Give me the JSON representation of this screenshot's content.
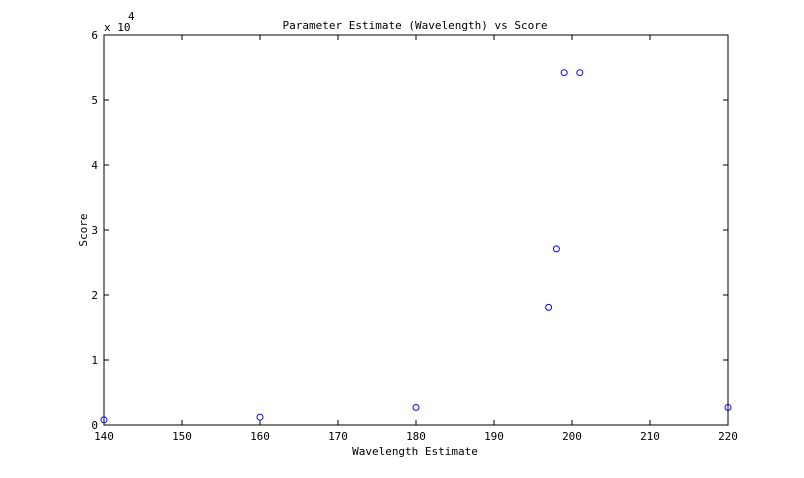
{
  "chart_data": {
    "type": "scatter",
    "title": "Parameter Estimate (Wavelength) vs Score",
    "xlabel": "Wavelength Estimate",
    "ylabel": "Score",
    "y_multiplier_label": "x 10",
    "y_multiplier_exponent": "4",
    "xlim": [
      140,
      220
    ],
    "ylim": [
      0,
      60000
    ],
    "x_ticks": [
      140,
      150,
      160,
      170,
      180,
      190,
      200,
      210,
      220
    ],
    "y_ticks": [
      0,
      10000,
      20000,
      30000,
      40000,
      50000,
      60000
    ],
    "x_tick_labels": [
      "140",
      "150",
      "160",
      "170",
      "180",
      "190",
      "200",
      "210",
      "220"
    ],
    "y_tick_labels": [
      "0",
      "1",
      "2",
      "3",
      "4",
      "5",
      "6"
    ],
    "grid": false,
    "marker": "circle-open",
    "marker_color": "#0000ff",
    "series": [
      {
        "x": [
          140,
          160,
          180,
          197,
          198,
          199,
          201,
          220
        ],
        "y": [
          800,
          1200,
          2700,
          18100,
          27100,
          54200,
          54200,
          2700
        ]
      }
    ]
  }
}
